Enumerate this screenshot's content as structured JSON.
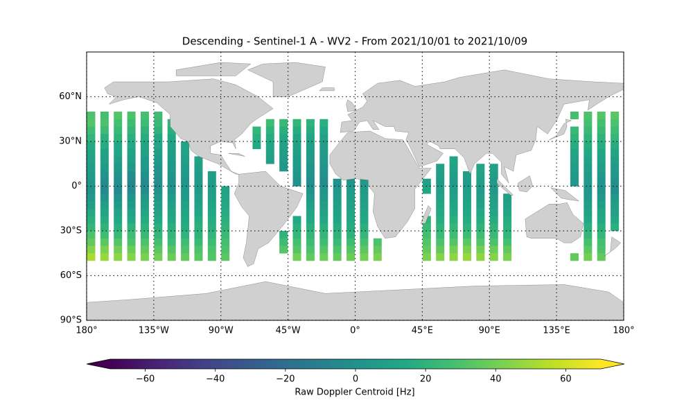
{
  "chart_data": {
    "type": "raster_map",
    "title": "Descending - Sentinel-1 A - WV2 - From 2021/10/01 to 2021/10/09",
    "xlim": [
      -180,
      180
    ],
    "ylim": [
      -90,
      90
    ],
    "xticks": [
      {
        "value": -180,
        "label": "180°"
      },
      {
        "value": -135,
        "label": "135°W"
      },
      {
        "value": -90,
        "label": "90°W"
      },
      {
        "value": -45,
        "label": "45°W"
      },
      {
        "value": 0,
        "label": "0°"
      },
      {
        "value": 45,
        "label": "45°E"
      },
      {
        "value": 90,
        "label": "90°E"
      },
      {
        "value": 135,
        "label": "135°E"
      },
      {
        "value": 180,
        "label": "180°"
      }
    ],
    "yticks": [
      {
        "value": -90,
        "label": "90°S"
      },
      {
        "value": -60,
        "label": "60°S"
      },
      {
        "value": -30,
        "label": "30°S"
      },
      {
        "value": 0,
        "label": "0°"
      },
      {
        "value": 30,
        "label": "30°N"
      },
      {
        "value": 60,
        "label": "60°N"
      }
    ],
    "grid": true,
    "lats": [
      47.5,
      42.5,
      37.5,
      32.5,
      27.5,
      22.5,
      17.5,
      12.5,
      7.5,
      2.5,
      -2.5,
      -7.5,
      -12.5,
      -17.5,
      -22.5,
      -27.5,
      -32.5,
      -37.5,
      -42.5,
      -47.5
    ],
    "lons": [
      -177,
      -168,
      -159,
      -150,
      -141,
      -132,
      -123,
      -114,
      -105,
      -96,
      -87,
      -66,
      -57,
      -48,
      -39,
      -30,
      -21,
      -12,
      -3,
      6,
      15,
      48,
      57,
      66,
      75,
      84,
      93,
      102,
      147,
      156,
      165,
      174
    ],
    "values": [
      [
        30,
        32,
        26,
        22,
        15,
        12,
        10,
        8,
        6,
        3,
        0,
        4,
        8,
        14,
        18,
        22,
        30,
        36,
        44,
        52
      ],
      [
        28,
        30,
        25,
        18,
        16,
        10,
        9,
        6,
        2,
        -2,
        -4,
        2,
        8,
        12,
        16,
        20,
        26,
        34,
        42,
        48
      ],
      [
        32,
        28,
        24,
        20,
        14,
        12,
        8,
        5,
        0,
        -3,
        -5,
        0,
        6,
        10,
        14,
        18,
        24,
        32,
        40,
        46
      ],
      [
        30,
        26,
        22,
        18,
        14,
        10,
        8,
        4,
        -2,
        -6,
        -4,
        2,
        6,
        10,
        14,
        20,
        26,
        30,
        38,
        44
      ],
      [
        28,
        26,
        20,
        16,
        12,
        10,
        6,
        4,
        0,
        -4,
        -2,
        4,
        8,
        12,
        16,
        20,
        24,
        30,
        36,
        42
      ],
      [
        26,
        24,
        20,
        14,
        12,
        8,
        6,
        2,
        0,
        -2,
        0,
        4,
        8,
        10,
        14,
        18,
        22,
        28,
        34,
        40
      ],
      [
        null,
        22,
        18,
        14,
        10,
        8,
        6,
        4,
        2,
        0,
        2,
        6,
        10,
        12,
        14,
        18,
        22,
        26,
        32,
        38
      ],
      [
        null,
        null,
        null,
        null,
        12,
        10,
        8,
        6,
        4,
        2,
        4,
        6,
        10,
        12,
        14,
        16,
        20,
        26,
        30,
        36
      ],
      [
        null,
        null,
        null,
        null,
        null,
        null,
        10,
        8,
        6,
        4,
        6,
        8,
        10,
        12,
        16,
        18,
        20,
        24,
        30,
        34
      ],
      [
        null,
        null,
        null,
        null,
        null,
        null,
        null,
        null,
        8,
        6,
        8,
        10,
        12,
        14,
        16,
        18,
        22,
        26,
        30,
        32
      ],
      [
        null,
        null,
        null,
        null,
        null,
        null,
        null,
        null,
        null,
        null,
        10,
        12,
        14,
        16,
        18,
        20,
        24,
        28,
        30,
        34
      ],
      [
        null,
        null,
        22,
        18,
        14,
        null,
        null,
        null,
        null,
        null,
        null,
        null,
        null,
        null,
        null,
        null,
        null,
        null,
        null,
        null
      ],
      [
        null,
        26,
        20,
        16,
        12,
        10,
        8,
        null,
        null,
        null,
        null,
        null,
        null,
        null,
        null,
        null,
        null,
        null,
        null,
        null
      ],
      [
        null,
        24,
        18,
        14,
        10,
        8,
        6,
        4,
        null,
        null,
        null,
        null,
        null,
        null,
        null,
        null,
        20,
        26,
        32,
        null
      ],
      [
        null,
        22,
        16,
        12,
        10,
        8,
        6,
        4,
        2,
        0,
        null,
        null,
        null,
        null,
        14,
        18,
        22,
        28,
        32,
        40
      ],
      [
        null,
        20,
        16,
        12,
        8,
        6,
        4,
        2,
        0,
        -2,
        0,
        4,
        8,
        12,
        14,
        18,
        22,
        26,
        30,
        36
      ],
      [
        null,
        18,
        14,
        10,
        8,
        6,
        4,
        2,
        0,
        -2,
        2,
        4,
        8,
        10,
        14,
        18,
        22,
        26,
        32,
        38
      ],
      [
        null,
        null,
        null,
        null,
        null,
        null,
        null,
        null,
        null,
        0,
        4,
        6,
        8,
        10,
        12,
        16,
        20,
        24,
        30,
        36
      ],
      [
        null,
        null,
        null,
        null,
        null,
        null,
        null,
        null,
        null,
        2,
        6,
        8,
        10,
        12,
        14,
        16,
        20,
        26,
        32,
        38
      ],
      [
        null,
        null,
        null,
        null,
        null,
        null,
        null,
        null,
        null,
        4,
        6,
        8,
        10,
        12,
        14,
        18,
        22,
        28,
        34,
        40
      ],
      [
        null,
        null,
        null,
        null,
        null,
        null,
        null,
        null,
        null,
        null,
        null,
        null,
        null,
        null,
        null,
        null,
        null,
        30,
        36,
        42
      ],
      [
        null,
        null,
        null,
        null,
        null,
        null,
        null,
        null,
        null,
        10,
        12,
        null,
        null,
        null,
        20,
        24,
        28,
        32,
        36,
        42
      ],
      [
        null,
        null,
        null,
        null,
        null,
        null,
        null,
        10,
        8,
        6,
        8,
        10,
        12,
        14,
        16,
        20,
        24,
        30,
        36,
        44
      ],
      [
        null,
        null,
        null,
        null,
        null,
        null,
        12,
        10,
        8,
        6,
        8,
        10,
        12,
        14,
        18,
        22,
        26,
        32,
        40,
        46
      ],
      [
        null,
        null,
        null,
        null,
        null,
        null,
        null,
        null,
        8,
        6,
        8,
        10,
        12,
        14,
        16,
        20,
        26,
        34,
        42,
        48
      ],
      [
        null,
        null,
        null,
        null,
        null,
        null,
        null,
        12,
        10,
        8,
        6,
        8,
        10,
        14,
        16,
        20,
        26,
        32,
        40,
        46
      ],
      [
        null,
        null,
        null,
        null,
        null,
        null,
        null,
        10,
        8,
        6,
        4,
        8,
        10,
        12,
        16,
        20,
        24,
        30,
        38,
        44
      ],
      [
        null,
        null,
        null,
        null,
        null,
        null,
        null,
        null,
        null,
        null,
        null,
        8,
        10,
        12,
        16,
        18,
        22,
        28,
        36,
        42
      ],
      [
        28,
        null,
        24,
        20,
        16,
        12,
        10,
        8,
        6,
        4,
        null,
        null,
        null,
        null,
        null,
        null,
        null,
        null,
        null,
        36
      ],
      [
        30,
        28,
        24,
        20,
        16,
        14,
        10,
        8,
        6,
        4,
        2,
        4,
        8,
        10,
        14,
        18,
        22,
        28,
        34,
        40
      ],
      [
        32,
        28,
        24,
        20,
        16,
        12,
        10,
        8,
        4,
        2,
        0,
        4,
        8,
        12,
        14,
        18,
        22,
        28,
        30,
        36
      ],
      [
        34,
        30,
        26,
        22,
        16,
        12,
        8,
        6,
        4,
        0,
        -2,
        4,
        8,
        10,
        14,
        18,
        null,
        null,
        null,
        null
      ]
    ],
    "colorbar": {
      "label": "Raw Doppler Centroid [Hz]",
      "colormap": "viridis",
      "lim": [
        -70,
        70
      ],
      "ticks": [
        -60,
        -40,
        -20,
        0,
        20,
        40,
        60
      ],
      "extend": "both"
    }
  }
}
